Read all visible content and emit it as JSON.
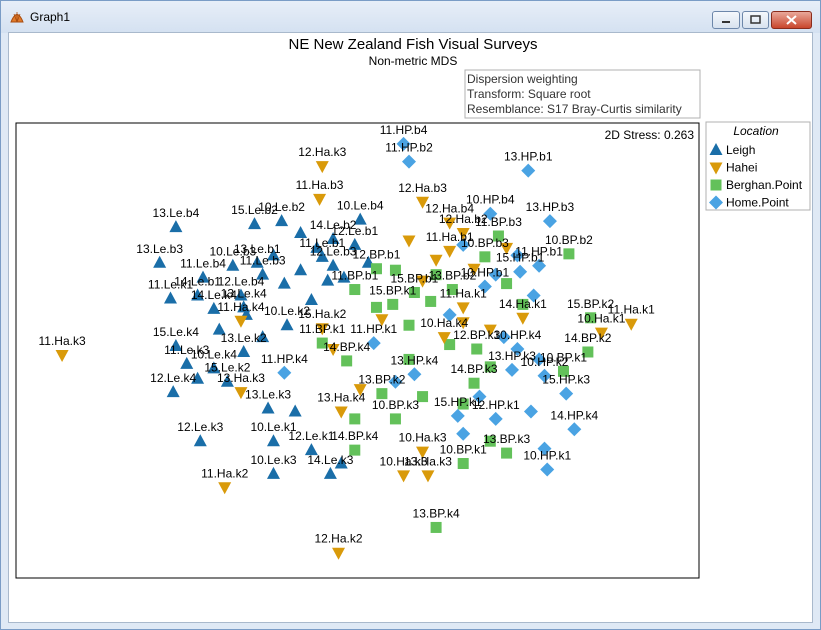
{
  "window": {
    "title": "Graph1"
  },
  "chart_data": {
    "type": "scatter",
    "title": "NE New Zealand Fish Visual Surveys",
    "subtitle": "Non-metric MDS",
    "info": [
      "Dispersion weighting",
      "Transform: Square root",
      "Resemblance: S17 Bray-Curtis similarity"
    ],
    "stress": "2D Stress: 0.263",
    "legend": {
      "title": "Location",
      "placement": "right",
      "entries": [
        {
          "name": "Leigh",
          "marker": "triangle-up",
          "color": "#1a6ea8"
        },
        {
          "name": "Hahei",
          "marker": "triangle-down",
          "color": "#d99a0a"
        },
        {
          "name": "Berghan.Point",
          "marker": "square",
          "color": "#63c15a"
        },
        {
          "name": "Home.Point",
          "marker": "diamond",
          "color": "#4aa3e3"
        }
      ]
    },
    "points": [
      {
        "label": "12.Ha.k3",
        "loc": "Hahei",
        "x": -0.42,
        "y": 1.65
      },
      {
        "label": "11.HP.b4",
        "loc": "Home.Point",
        "x": -0.12,
        "y": 1.8
      },
      {
        "label": "11.HP.b2",
        "loc": "Home.Point",
        "x": -0.1,
        "y": 1.68
      },
      {
        "label": "13.HP.b1",
        "loc": "Home.Point",
        "x": 0.34,
        "y": 1.62
      },
      {
        "label": "11.Ha.b3",
        "loc": "Hahei",
        "x": -0.43,
        "y": 1.43
      },
      {
        "label": "12.Ha.b3",
        "loc": "Hahei",
        "x": -0.05,
        "y": 1.41
      },
      {
        "label": "10.Le.b2",
        "loc": "Leigh",
        "x": -0.57,
        "y": 1.28
      },
      {
        "label": "15.Le.b2",
        "loc": "Leigh",
        "x": -0.67,
        "y": 1.26
      },
      {
        "label": "10.Le.b4",
        "loc": "Leigh",
        "x": -0.28,
        "y": 1.29
      },
      {
        "label": "13.Le.b4",
        "loc": "Leigh",
        "x": -0.96,
        "y": 1.24
      },
      {
        "label": "12.Ha.b4",
        "loc": "Hahei",
        "x": 0.05,
        "y": 1.27
      },
      {
        "label": "10.HP.b4",
        "loc": "Home.Point",
        "x": 0.2,
        "y": 1.33
      },
      {
        "label": "13.HP.b3",
        "loc": "Home.Point",
        "x": 0.42,
        "y": 1.28
      },
      {
        "label": "12.Ha.b2",
        "loc": "Hahei",
        "x": 0.1,
        "y": 1.2
      },
      {
        "label": "11.BP.b3",
        "loc": "Berghan.Point",
        "x": 0.23,
        "y": 1.18
      },
      {
        "label": "14.Le.b2",
        "loc": "Leigh",
        "x": -0.38,
        "y": 1.16
      },
      {
        "label": "12.Le.b1",
        "loc": "Leigh",
        "x": -0.3,
        "y": 1.12
      },
      {
        "label": "10.BP.b2",
        "loc": "Berghan.Point",
        "x": 0.49,
        "y": 1.06
      },
      {
        "label": "13.Le.b3",
        "loc": "Leigh",
        "x": -1.02,
        "y": 1.0
      },
      {
        "label": "10.Le.b3",
        "loc": "Leigh",
        "x": -0.75,
        "y": 0.98
      },
      {
        "label": "13.Le.b1",
        "loc": "Leigh",
        "x": -0.66,
        "y": 1.0
      },
      {
        "label": "11.Le.b1",
        "loc": "Leigh",
        "x": -0.42,
        "y": 1.04
      },
      {
        "label": "12.Le.b3",
        "loc": "Leigh",
        "x": -0.38,
        "y": 0.98
      },
      {
        "label": "11.Ha.b1",
        "loc": "Hahei",
        "x": 0.05,
        "y": 1.08
      },
      {
        "label": "10.BP.b3",
        "loc": "Berghan.Point",
        "x": 0.18,
        "y": 1.04
      },
      {
        "label": "11.Le.b4",
        "loc": "Leigh",
        "x": -0.86,
        "y": 0.9
      },
      {
        "label": "11.Le.b3",
        "loc": "Leigh",
        "x": -0.64,
        "y": 0.92
      },
      {
        "label": "12.BP.b1",
        "loc": "Berghan.Point",
        "x": -0.22,
        "y": 0.96
      },
      {
        "label": "15.HP.b1",
        "loc": "Home.Point",
        "x": 0.31,
        "y": 0.94
      },
      {
        "label": "11.HP.b1",
        "loc": "Home.Point",
        "x": 0.38,
        "y": 0.98
      },
      {
        "label": "11.Le.k1",
        "loc": "Leigh",
        "x": -0.98,
        "y": 0.76
      },
      {
        "label": "14.Le.b1",
        "loc": "Leigh",
        "x": -0.88,
        "y": 0.78
      },
      {
        "label": "12.Le.b4",
        "loc": "Leigh",
        "x": -0.72,
        "y": 0.78
      },
      {
        "label": "11.BP.b1",
        "loc": "Berghan.Point",
        "x": -0.3,
        "y": 0.82
      },
      {
        "label": "15.BP.b1",
        "loc": "Berghan.Point",
        "x": -0.08,
        "y": 0.8
      },
      {
        "label": "13.BP.b2",
        "loc": "Berghan.Point",
        "x": 0.06,
        "y": 0.82
      },
      {
        "label": "10.HP.b1",
        "loc": "Home.Point",
        "x": 0.18,
        "y": 0.84
      },
      {
        "label": "14.Le.k4",
        "loc": "Leigh",
        "x": -0.82,
        "y": 0.69
      },
      {
        "label": "13.Le.k4",
        "loc": "Leigh",
        "x": -0.71,
        "y": 0.7
      },
      {
        "label": "11.Ha.k4",
        "loc": "Hahei",
        "x": -0.72,
        "y": 0.61
      },
      {
        "label": "10.Le.k2",
        "loc": "Leigh",
        "x": -0.55,
        "y": 0.58
      },
      {
        "label": "15.Ha.k2",
        "loc": "Hahei",
        "x": -0.42,
        "y": 0.56
      },
      {
        "label": "15.BP.k1",
        "loc": "Berghan.Point",
        "x": -0.16,
        "y": 0.72
      },
      {
        "label": "11.Ha.k1",
        "loc": "Hahei",
        "x": 0.1,
        "y": 0.7
      },
      {
        "label": "14.Ha.k1",
        "loc": "Hahei",
        "x": 0.32,
        "y": 0.63
      },
      {
        "label": "15.BP.k2",
        "loc": "Berghan.Point",
        "x": 0.57,
        "y": 0.63
      },
      {
        "label": "11.Ha.k1",
        "loc": "Hahei",
        "x": 0.72,
        "y": 0.59
      },
      {
        "label": "10.Ha.k1",
        "loc": "Hahei",
        "x": 0.61,
        "y": 0.53
      },
      {
        "label": "11.Ha.k3",
        "loc": "Hahei",
        "x": -1.38,
        "y": 0.38
      },
      {
        "label": "15.Le.k4",
        "loc": "Leigh",
        "x": -0.96,
        "y": 0.44
      },
      {
        "label": "13.Le.k2",
        "loc": "Leigh",
        "x": -0.71,
        "y": 0.4
      },
      {
        "label": "11.BP.k1",
        "loc": "Berghan.Point",
        "x": -0.42,
        "y": 0.46
      },
      {
        "label": "11.HP.k1",
        "loc": "Home.Point",
        "x": -0.23,
        "y": 0.46
      },
      {
        "label": "10.Ha.k4",
        "loc": "Hahei",
        "x": 0.03,
        "y": 0.5
      },
      {
        "label": "12.BP.k3",
        "loc": "Berghan.Point",
        "x": 0.15,
        "y": 0.42
      },
      {
        "label": "10.HP.k4",
        "loc": "Home.Point",
        "x": 0.3,
        "y": 0.42
      },
      {
        "label": "14.BP.k2",
        "loc": "Berghan.Point",
        "x": 0.56,
        "y": 0.4
      },
      {
        "label": "11.Le.k3",
        "loc": "Leigh",
        "x": -0.92,
        "y": 0.32
      },
      {
        "label": "10.Le.k4",
        "loc": "Leigh",
        "x": -0.82,
        "y": 0.29
      },
      {
        "label": "15.Le.k2",
        "loc": "Leigh",
        "x": -0.77,
        "y": 0.2
      },
      {
        "label": "11.HP.k4",
        "loc": "Home.Point",
        "x": -0.56,
        "y": 0.26
      },
      {
        "label": "14.BP.k4",
        "loc": "Berghan.Point",
        "x": -0.33,
        "y": 0.34
      },
      {
        "label": "13.HP.k4",
        "loc": "Home.Point",
        "x": -0.08,
        "y": 0.25
      },
      {
        "label": "13.HP.k3",
        "loc": "Home.Point",
        "x": 0.28,
        "y": 0.28
      },
      {
        "label": "10.HP.k2",
        "loc": "Home.Point",
        "x": 0.4,
        "y": 0.24
      },
      {
        "label": "10.BP.k1",
        "loc": "Berghan.Point",
        "x": 0.47,
        "y": 0.27
      },
      {
        "label": "12.Le.k4",
        "loc": "Leigh",
        "x": -0.97,
        "y": 0.13
      },
      {
        "label": "13.Ha.k3",
        "loc": "Hahei",
        "x": -0.72,
        "y": 0.13
      },
      {
        "label": "13.BP.k2",
        "loc": "Berghan.Point",
        "x": -0.2,
        "y": 0.12
      },
      {
        "label": "14.BP.k3",
        "loc": "Berghan.Point",
        "x": 0.14,
        "y": 0.19
      },
      {
        "label": "15.HP.k3",
        "loc": "Home.Point",
        "x": 0.48,
        "y": 0.12
      },
      {
        "label": "13.Le.k3",
        "loc": "Leigh",
        "x": -0.62,
        "y": 0.02
      },
      {
        "label": "13.Ha.k4",
        "loc": "Hahei",
        "x": -0.35,
        "y": 0.0
      },
      {
        "label": "10.BP.k3",
        "loc": "Berghan.Point",
        "x": -0.15,
        "y": -0.05
      },
      {
        "label": "15.HP.k1",
        "loc": "Home.Point",
        "x": 0.08,
        "y": -0.03
      },
      {
        "label": "12.HP.k1",
        "loc": "Home.Point",
        "x": 0.22,
        "y": -0.05
      },
      {
        "label": "14.HP.k4",
        "loc": "Home.Point",
        "x": 0.51,
        "y": -0.12
      },
      {
        "label": "12.Le.k3",
        "loc": "Leigh",
        "x": -0.87,
        "y": -0.2
      },
      {
        "label": "10.Le.k1",
        "loc": "Leigh",
        "x": -0.6,
        "y": -0.2
      },
      {
        "label": "12.Le.k1",
        "loc": "Leigh",
        "x": -0.46,
        "y": -0.26
      },
      {
        "label": "14.BP.k4",
        "loc": "Berghan.Point",
        "x": -0.3,
        "y": -0.26
      },
      {
        "label": "10.Ha.k3",
        "loc": "Hahei",
        "x": -0.05,
        "y": -0.27
      },
      {
        "label": "13.BP.k3",
        "loc": "Berghan.Point",
        "x": 0.26,
        "y": -0.28
      },
      {
        "label": "10.BP.k1",
        "loc": "Berghan.Point",
        "x": 0.1,
        "y": -0.35
      },
      {
        "label": "10.HP.k1",
        "loc": "Home.Point",
        "x": 0.41,
        "y": -0.39
      },
      {
        "label": "10.Le.k3",
        "loc": "Leigh",
        "x": -0.6,
        "y": -0.42
      },
      {
        "label": "14.Le.k3",
        "loc": "Leigh",
        "x": -0.39,
        "y": -0.42
      },
      {
        "label": "10.Ha.k3",
        "loc": "Hahei",
        "x": -0.12,
        "y": -0.43
      },
      {
        "label": "13.Ha.k3",
        "loc": "Hahei",
        "x": -0.03,
        "y": -0.43
      },
      {
        "label": "11.Ha.k2",
        "loc": "Hahei",
        "x": -0.78,
        "y": -0.51
      },
      {
        "label": "13.BP.k4",
        "loc": "Berghan.Point",
        "x": 0.0,
        "y": -0.78
      },
      {
        "label": "12.Ha.k2",
        "loc": "Hahei",
        "x": -0.36,
        "y": -0.95
      }
    ],
    "extra_points": [
      {
        "loc": "Leigh",
        "x": -0.5,
        "y": 1.2
      },
      {
        "loc": "Leigh",
        "x": -0.44,
        "y": 1.1
      },
      {
        "loc": "Leigh",
        "x": -0.5,
        "y": 0.95
      },
      {
        "loc": "Leigh",
        "x": -0.4,
        "y": 0.88
      },
      {
        "loc": "Leigh",
        "x": -0.56,
        "y": 0.86
      },
      {
        "loc": "Leigh",
        "x": -0.34,
        "y": 0.9
      },
      {
        "loc": "Leigh",
        "x": -0.6,
        "y": 1.05
      },
      {
        "loc": "Leigh",
        "x": -0.25,
        "y": 1.0
      },
      {
        "loc": "Leigh",
        "x": -0.8,
        "y": 0.55
      },
      {
        "loc": "Leigh",
        "x": -0.64,
        "y": 0.5
      },
      {
        "loc": "Leigh",
        "x": -0.88,
        "y": 0.22
      },
      {
        "loc": "Leigh",
        "x": -0.52,
        "y": 0.0
      },
      {
        "loc": "Leigh",
        "x": -0.7,
        "y": 0.65
      },
      {
        "loc": "Leigh",
        "x": -0.46,
        "y": 0.75
      },
      {
        "loc": "Leigh",
        "x": -0.35,
        "y": -0.35
      },
      {
        "loc": "Hahei",
        "x": -0.1,
        "y": 1.15
      },
      {
        "loc": "Hahei",
        "x": 0.0,
        "y": 1.02
      },
      {
        "loc": "Hahei",
        "x": 0.14,
        "y": 0.96
      },
      {
        "loc": "Hahei",
        "x": 0.26,
        "y": 1.1
      },
      {
        "loc": "Hahei",
        "x": 0.1,
        "y": 0.6
      },
      {
        "loc": "Hahei",
        "x": -0.2,
        "y": 0.62
      },
      {
        "loc": "Hahei",
        "x": -0.38,
        "y": 0.42
      },
      {
        "loc": "Hahei",
        "x": -0.28,
        "y": 0.15
      },
      {
        "loc": "Hahei",
        "x": 0.2,
        "y": 0.55
      },
      {
        "loc": "Hahei",
        "x": -0.05,
        "y": 0.88
      },
      {
        "loc": "Berghan.Point",
        "x": 0.0,
        "y": 0.92
      },
      {
        "loc": "Berghan.Point",
        "x": -0.15,
        "y": 0.95
      },
      {
        "loc": "Berghan.Point",
        "x": 0.26,
        "y": 0.86
      },
      {
        "loc": "Berghan.Point",
        "x": -0.02,
        "y": 0.74
      },
      {
        "loc": "Berghan.Point",
        "x": -0.22,
        "y": 0.7
      },
      {
        "loc": "Berghan.Point",
        "x": 0.05,
        "y": 0.45
      },
      {
        "loc": "Berghan.Point",
        "x": -0.1,
        "y": 0.35
      },
      {
        "loc": "Berghan.Point",
        "x": 0.2,
        "y": 0.3
      },
      {
        "loc": "Berghan.Point",
        "x": -0.05,
        "y": 0.1
      },
      {
        "loc": "Berghan.Point",
        "x": 0.1,
        "y": 0.05
      },
      {
        "loc": "Berghan.Point",
        "x": -0.3,
        "y": -0.05
      },
      {
        "loc": "Berghan.Point",
        "x": 0.2,
        "y": -0.2
      },
      {
        "loc": "Berghan.Point",
        "x": -0.1,
        "y": 0.58
      },
      {
        "loc": "Berghan.Point",
        "x": 0.32,
        "y": 0.72
      },
      {
        "loc": "Home.Point",
        "x": 0.1,
        "y": 1.12
      },
      {
        "loc": "Home.Point",
        "x": 0.3,
        "y": 1.05
      },
      {
        "loc": "Home.Point",
        "x": 0.22,
        "y": 0.92
      },
      {
        "loc": "Home.Point",
        "x": 0.36,
        "y": 0.78
      },
      {
        "loc": "Home.Point",
        "x": 0.05,
        "y": 0.65
      },
      {
        "loc": "Home.Point",
        "x": 0.25,
        "y": 0.5
      },
      {
        "loc": "Home.Point",
        "x": 0.38,
        "y": 0.35
      },
      {
        "loc": "Home.Point",
        "x": 0.16,
        "y": 0.1
      },
      {
        "loc": "Home.Point",
        "x": 0.35,
        "y": 0.0
      },
      {
        "loc": "Home.Point",
        "x": -0.15,
        "y": 0.2
      },
      {
        "loc": "Home.Point",
        "x": 0.1,
        "y": -0.15
      },
      {
        "loc": "Home.Point",
        "x": 0.4,
        "y": -0.25
      }
    ],
    "xlim": [
      -1.55,
      0.97
    ],
    "ylim": [
      -1.12,
      1.94
    ]
  }
}
